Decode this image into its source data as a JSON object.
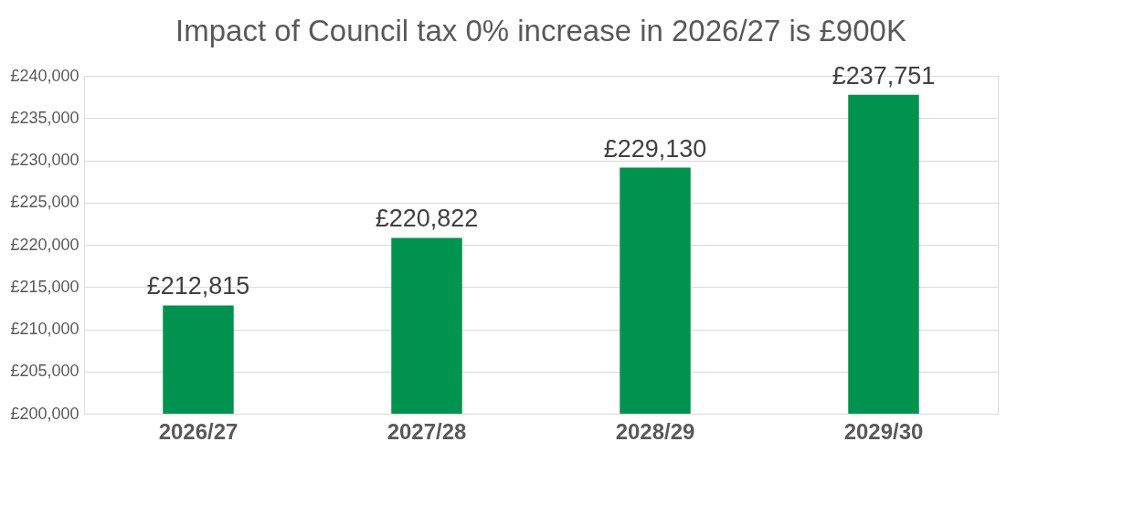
{
  "chart_data": {
    "type": "bar",
    "title": "Impact of Council tax 0% increase in 2026/27 is £900K",
    "categories": [
      "2026/27",
      "2027/28",
      "2028/29",
      "2029/30"
    ],
    "values": [
      212815,
      220822,
      229130,
      237751
    ],
    "value_labels": [
      "£212,815",
      "£220,822",
      "£229,130",
      "£237,751"
    ],
    "color": "#009350",
    "ylim": [
      200000,
      240000
    ],
    "yticks": [
      {
        "value": 200000,
        "label": "£200,000"
      },
      {
        "value": 205000,
        "label": "£205,000"
      },
      {
        "value": 210000,
        "label": "£210,000"
      },
      {
        "value": 215000,
        "label": "£215,000"
      },
      {
        "value": 220000,
        "label": "£220,000"
      },
      {
        "value": 225000,
        "label": "£225,000"
      },
      {
        "value": 230000,
        "label": "£230,000"
      },
      {
        "value": 235000,
        "label": "£235,000"
      },
      {
        "value": 240000,
        "label": "£240,000"
      }
    ],
    "grid": "y"
  }
}
